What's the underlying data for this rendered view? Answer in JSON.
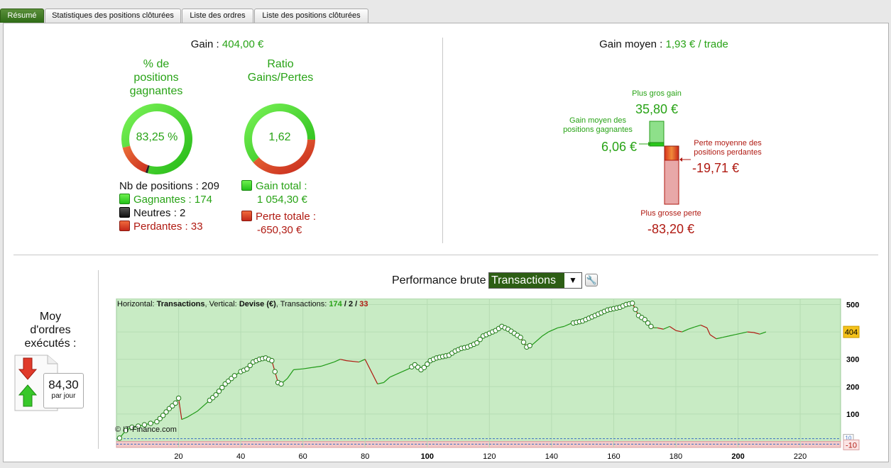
{
  "tabs": [
    {
      "label": "Résumé",
      "active": true
    },
    {
      "label": "Statistiques des positions clôturées",
      "active": false
    },
    {
      "label": "Liste des ordres",
      "active": false
    },
    {
      "label": "Liste des positions clôturées",
      "active": false
    }
  ],
  "summary": {
    "gain_label": "Gain :",
    "gain_value": "404,00 €",
    "pct_title": [
      "% de",
      "positions",
      "gagnantes"
    ],
    "pct_value": "83,25 %",
    "pct_fraction": 0.8325,
    "ratio_title": [
      "Ratio",
      "Gains/Pertes"
    ],
    "ratio_value": "1,62",
    "ratio_fraction": 0.618,
    "nb_positions": "Nb de positions : 209",
    "gagnantes": "Gagnantes : 174",
    "neutres": "Neutres : 2",
    "perdantes": "Perdantes : 33",
    "gain_total_label": "Gain total :",
    "gain_total_value": "1 054,30 €",
    "perte_totale_label": "Perte totale :",
    "perte_totale_value": "-650,30 €"
  },
  "gain_moyen": {
    "label": "Gain moyen :",
    "value": "1,93 € / trade",
    "plus_gros_gain_label": "Plus gros gain",
    "plus_gros_gain_value": "35,80 €",
    "gain_moyen_gagnantes_label": [
      "Gain moyen des",
      "positions gagnantes"
    ],
    "gain_moyen_gagnantes_value": "6,06 €",
    "perte_moyenne_label": [
      "Perte moyenne des",
      "positions perdantes"
    ],
    "perte_moyenne_value": "-19,71 €",
    "plus_grosse_perte_label": "Plus grosse perte",
    "plus_grosse_perte_value": "-83,20 €"
  },
  "orders": {
    "title": [
      "Moy",
      "d'ordres",
      "exécutés :"
    ],
    "value": "84,30",
    "unit": "par jour"
  },
  "performance": {
    "label": "Performance brute",
    "select_value": "Transactions",
    "info_prefix": "Horizontal:",
    "info_h": "Transactions",
    "info_mid": ", Vertical:",
    "info_v": "Devise (€)",
    "info_tr": ", Transactions:",
    "info_win": "174",
    "info_sep": "/",
    "info_neu": "2",
    "info_loss": "33",
    "copyright": "© IT-Finance.com",
    "last_value_tag": "404",
    "neg_tag": "-10",
    "pos_tag": "10",
    "colors": {
      "positive_bg": "#c8ebc4",
      "negative_bg": "#f3c8c8",
      "line_up": "#1f9a16",
      "line_down": "#b01a12"
    }
  },
  "chart_data": {
    "type": "line",
    "xlabel": "",
    "ylabel": "",
    "xlim": [
      0,
      233
    ],
    "ylim": [
      -22,
      522
    ],
    "x_ticks": [
      20,
      40,
      60,
      80,
      100,
      120,
      140,
      160,
      180,
      200,
      220
    ],
    "x_ticks_bold": [
      100,
      200
    ],
    "y_ticks": [
      100,
      200,
      300,
      400,
      500
    ],
    "series": [
      {
        "x": [
          1,
          3,
          5,
          8,
          11,
          13,
          15,
          17,
          19,
          20,
          21,
          23,
          26,
          30,
          32,
          35,
          38,
          40,
          42,
          44,
          46,
          48,
          50,
          52,
          53,
          55,
          57,
          60,
          63,
          66,
          70,
          72,
          74,
          78,
          80,
          84,
          86,
          88,
          90,
          92,
          94,
          96,
          98,
          99,
          101,
          103,
          105,
          107,
          109,
          111,
          113,
          116,
          118,
          120,
          122,
          124,
          126,
          128,
          130,
          132,
          134,
          137,
          139,
          142,
          144,
          146,
          148,
          150,
          152,
          154,
          156,
          158,
          160,
          162,
          164,
          166,
          168,
          170,
          172,
          173,
          174,
          176,
          178,
          180,
          182,
          184,
          186,
          188,
          190,
          191,
          193,
          195,
          197,
          199,
          201,
          203,
          205,
          207,
          209
        ],
        "y": [
          12,
          40,
          52,
          58,
          66,
          72,
          95,
          120,
          140,
          158,
          80,
          90,
          110,
          150,
          170,
          210,
          240,
          255,
          265,
          290,
          300,
          305,
          295,
          215,
          210,
          230,
          262,
          265,
          270,
          275,
          290,
          300,
          295,
          290,
          300,
          210,
          215,
          235,
          245,
          255,
          265,
          280,
          262,
          270,
          295,
          305,
          310,
          315,
          330,
          340,
          345,
          360,
          385,
          395,
          405,
          420,
          410,
          395,
          380,
          345,
          355,
          385,
          400,
          415,
          420,
          430,
          435,
          440,
          450,
          460,
          470,
          480,
          485,
          490,
          500,
          505,
          460,
          445,
          420,
          415,
          415,
          410,
          420,
          405,
          400,
          410,
          418,
          425,
          415,
          390,
          375,
          380,
          385,
          390,
          395,
          400,
          398,
          392,
          400
        ]
      }
    ],
    "markers_at": [
      1,
      3,
      5,
      7,
      9,
      11,
      13,
      14,
      15,
      16,
      17,
      18,
      19,
      20,
      30,
      31,
      32,
      33,
      34,
      35,
      36,
      37,
      38,
      40,
      41,
      42,
      43,
      44,
      45,
      46,
      47,
      48,
      49,
      50,
      51,
      52,
      53,
      95,
      96,
      97,
      98,
      99,
      100,
      101,
      102,
      103,
      104,
      105,
      106,
      107,
      108,
      109,
      110,
      111,
      112,
      113,
      114,
      115,
      116,
      117,
      118,
      119,
      120,
      121,
      122,
      123,
      124,
      125,
      126,
      127,
      128,
      129,
      130,
      131,
      132,
      133,
      147,
      148,
      149,
      150,
      151,
      152,
      153,
      154,
      155,
      156,
      157,
      158,
      159,
      160,
      161,
      162,
      163,
      164,
      165,
      166,
      167,
      168,
      169,
      170,
      171,
      172
    ]
  }
}
